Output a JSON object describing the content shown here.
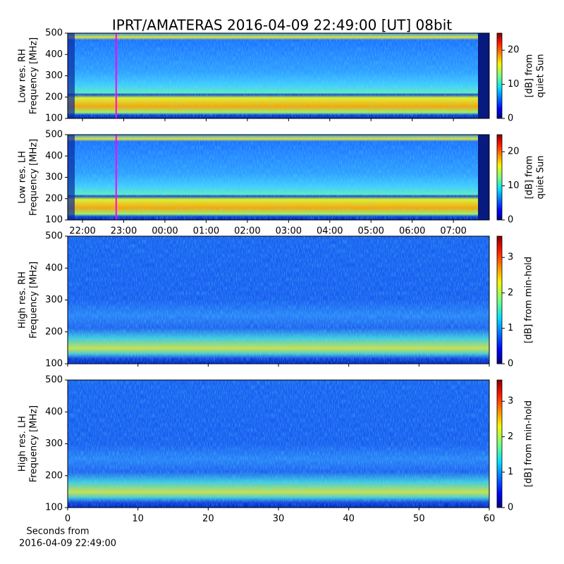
{
  "title": "IPRT/AMATERAS 2016-04-09 22:49:00 [UT]   08bit",
  "chart_data": [
    {
      "type": "heatmap",
      "ylabel": [
        "Low res. RH",
        "Frequency [MHz]"
      ],
      "ylim": [
        100,
        500
      ],
      "yticks": [
        100,
        200,
        300,
        400,
        500
      ],
      "xlim": [
        21.64,
        31.87
      ],
      "marker_x": 22.817,
      "marker_color": "#ff00ff",
      "clim": [
        0,
        25
      ],
      "cticks": [
        0,
        10,
        20
      ],
      "clabel": [
        "[dB] from",
        "quiet Sun"
      ]
    },
    {
      "type": "heatmap",
      "ylabel": [
        "Low res. LH",
        "Frequency [MHz]"
      ],
      "ylim": [
        100,
        500
      ],
      "yticks": [
        100,
        200,
        300,
        400,
        500
      ],
      "xlim": [
        21.64,
        31.87
      ],
      "marker_x": 22.817,
      "marker_color": "#ff00ff",
      "xticks": [
        {
          "value": 22,
          "label": "22:00"
        },
        {
          "value": 23,
          "label": "23:00"
        },
        {
          "value": 24,
          "label": "00:00"
        },
        {
          "value": 25,
          "label": "01:00"
        },
        {
          "value": 26,
          "label": "02:00"
        },
        {
          "value": 27,
          "label": "03:00"
        },
        {
          "value": 28,
          "label": "04:00"
        },
        {
          "value": 29,
          "label": "05:00"
        },
        {
          "value": 30,
          "label": "06:00"
        },
        {
          "value": 31,
          "label": "07:00"
        }
      ],
      "clim": [
        0,
        25
      ],
      "cticks": [
        0,
        10,
        20
      ],
      "clabel": [
        "[dB] from",
        "quiet Sun"
      ]
    },
    {
      "type": "heatmap",
      "ylabel": [
        "High res. RH",
        "Frequency [MHz]"
      ],
      "ylim": [
        100,
        500
      ],
      "yticks": [
        100,
        200,
        300,
        400,
        500
      ],
      "xlim": [
        0,
        60
      ],
      "clim": [
        0,
        3.6
      ],
      "cticks": [
        0,
        1,
        2,
        3
      ],
      "clabel": [
        "[dB] from min-hold"
      ]
    },
    {
      "type": "heatmap",
      "ylabel": [
        "High res. LH",
        "Frequency [MHz]"
      ],
      "ylim": [
        100,
        500
      ],
      "yticks": [
        100,
        200,
        300,
        400,
        500
      ],
      "xlim": [
        0,
        60
      ],
      "xticks": [
        0,
        10,
        20,
        30,
        40,
        50,
        60
      ],
      "xlabel": [
        "Seconds from",
        "2016-04-09 22:49:00"
      ],
      "clim": [
        0,
        3.6
      ],
      "cticks": [
        0,
        1,
        2,
        3
      ],
      "clabel": [
        "[dB] from min-hold"
      ]
    }
  ]
}
